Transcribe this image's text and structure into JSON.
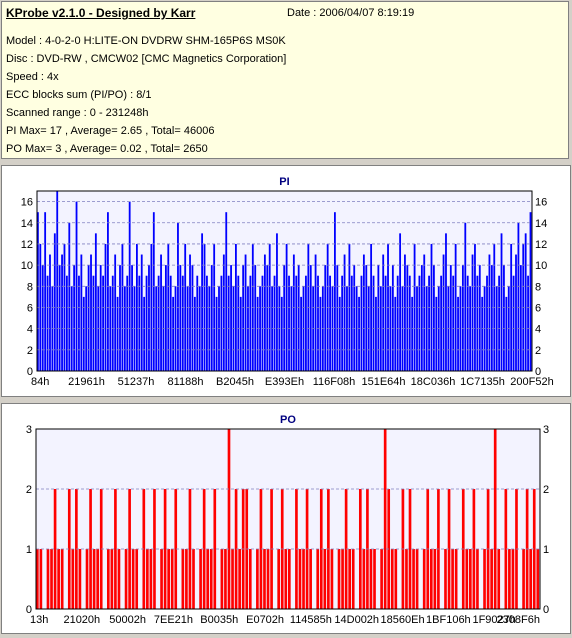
{
  "header": {
    "title": "KProbe v2.1.0 - Designed by Karr",
    "date": "Date : 2006/04/07 8:19:19",
    "lines": [
      "Model : 4-0-2-0 H:LITE-ON DVDRW SHM-165P6S MS0K",
      "Disc : DVD-RW , CMCW02 [CMC Magnetics Corporation]",
      "Speed : 4x",
      "ECC blocks sum (PI/PO) : 8/1",
      "Scanned range : 0 - 231248h",
      "PI Max= 17 , Average= 2.65 , Total= 46006",
      "PO Max= 3 , Average= 0.02 , Total= 2650"
    ]
  },
  "colors": {
    "pi": "#0000ff",
    "po": "#ff0000",
    "info_bg": "#ffffe1",
    "plot_bg": "#f3f3ff",
    "grid": "#8080c0"
  },
  "chart_data": [
    {
      "type": "bar",
      "title": "PI",
      "xlabel": "",
      "ylabel": "",
      "ylim": [
        0,
        17
      ],
      "yticks": [
        0,
        2,
        4,
        6,
        8,
        10,
        12,
        14,
        16
      ],
      "xticks": [
        "84h",
        "21961h",
        "51237h",
        "81188h",
        "B2045h",
        "E393Eh",
        "116F08h",
        "151E64h",
        "18C036h",
        "1C7135h",
        "200F52h"
      ],
      "grid": "horizontal dashed",
      "series": [
        {
          "color": "#0000ff",
          "values": [
            15,
            12,
            10,
            15,
            9,
            11,
            8,
            13,
            17,
            10,
            11,
            12,
            9,
            14,
            8,
            10,
            16,
            9,
            11,
            7,
            8,
            10,
            11,
            9,
            13,
            8,
            10,
            9,
            12,
            15,
            8,
            9,
            11,
            7,
            10,
            12,
            8,
            9,
            16,
            10,
            8,
            12,
            9,
            11,
            7,
            9,
            10,
            12,
            15,
            8,
            9,
            11,
            8,
            10,
            12,
            9,
            7,
            8,
            14,
            10,
            9,
            12,
            8,
            11,
            10,
            7,
            9,
            8,
            13,
            12,
            9,
            8,
            10,
            12,
            7,
            8,
            9,
            11,
            15,
            9,
            10,
            8,
            12,
            9,
            7,
            10,
            11,
            8,
            9,
            12,
            10,
            7,
            8,
            9,
            11,
            10,
            12,
            8,
            9,
            13,
            8,
            7,
            10,
            12,
            9,
            8,
            11,
            9,
            10,
            7,
            8,
            9,
            12,
            10,
            8,
            11,
            9,
            7,
            8,
            10,
            12,
            9,
            8,
            15,
            10,
            7,
            9,
            11,
            8,
            12,
            9,
            10,
            8,
            7,
            9,
            11,
            10,
            8,
            12,
            9,
            7,
            10,
            8,
            11,
            9,
            12,
            8,
            10,
            7,
            9,
            13,
            8,
            11,
            10,
            9,
            7,
            12,
            8,
            9,
            10,
            11,
            8,
            9,
            12,
            10,
            7,
            8,
            9,
            11,
            13,
            8,
            10,
            9,
            12,
            7,
            8,
            10,
            14,
            9,
            8,
            11,
            12,
            9,
            10,
            7,
            8,
            9,
            11,
            10,
            12,
            8,
            9,
            13,
            10,
            7,
            8,
            12,
            9,
            11,
            14,
            10,
            12,
            13,
            9,
            15
          ]
        }
      ]
    },
    {
      "type": "bar",
      "title": "PO",
      "xlabel": "",
      "ylabel": "",
      "ylim": [
        0,
        3
      ],
      "yticks": [
        0,
        1,
        2,
        3
      ],
      "xticks": [
        "13h",
        "21020h",
        "50002h",
        "7EE21h",
        "B0035h",
        "E0702h",
        "114585h",
        "14D002h",
        "18560Eh",
        "1BF106h",
        "1F9027h",
        "2308F6h"
      ],
      "grid": "horizontal dashed",
      "series": [
        {
          "color": "#ff0000",
          "values": [
            1,
            1,
            0,
            1,
            1,
            2,
            1,
            1,
            0,
            2,
            1,
            2,
            1,
            0,
            1,
            2,
            1,
            1,
            2,
            0,
            1,
            1,
            2,
            1,
            0,
            1,
            2,
            1,
            1,
            0,
            2,
            1,
            1,
            2,
            0,
            1,
            2,
            1,
            1,
            2,
            0,
            1,
            1,
            2,
            1,
            0,
            1,
            2,
            1,
            1,
            2,
            0,
            1,
            1,
            3,
            1,
            2,
            1,
            2,
            2,
            1,
            0,
            1,
            2,
            1,
            1,
            2,
            0,
            1,
            2,
            1,
            1,
            0,
            2,
            1,
            1,
            2,
            1,
            0,
            1,
            2,
            1,
            2,
            1,
            0,
            1,
            1,
            2,
            1,
            1,
            0,
            2,
            1,
            2,
            1,
            1,
            0,
            1,
            3,
            2,
            1,
            1,
            0,
            2,
            1,
            2,
            1,
            1,
            0,
            1,
            2,
            1,
            1,
            2,
            0,
            1,
            2,
            1,
            1,
            0,
            2,
            1,
            1,
            2,
            1,
            0,
            1,
            2,
            1,
            3,
            1,
            0,
            2,
            1,
            1,
            2,
            0,
            1,
            2,
            1,
            2,
            1
          ]
        }
      ]
    }
  ]
}
